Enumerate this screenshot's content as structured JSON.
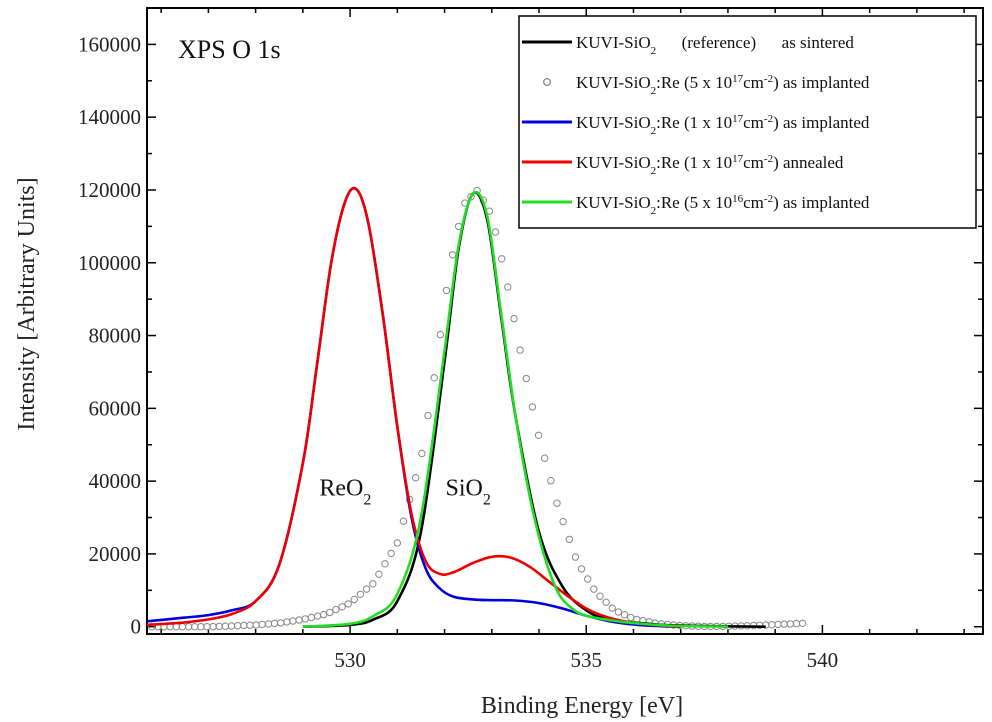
{
  "chart_data": {
    "type": "line",
    "title": "XPS O 1s",
    "xlabel": "Binding Energy [eV]",
    "ylabel": "Intensity [Arbitrary Units]",
    "xlim": [
      525.7,
      543.4
    ],
    "ylim": [
      -2000,
      170000
    ],
    "xticks": [
      530,
      535,
      540
    ],
    "yticks": [
      0,
      20000,
      40000,
      60000,
      80000,
      100000,
      120000,
      140000,
      160000
    ],
    "grid": false,
    "legend_position": "top-right",
    "annotations": [
      {
        "text": "ReO",
        "sub": "2",
        "x": 529.9,
        "y": 36000
      },
      {
        "text": "SiO",
        "sub": "2",
        "x": 532.5,
        "y": 36000
      }
    ],
    "series": [
      {
        "name": "KUVI-SiO2 (reference) as sintered",
        "legend": {
          "pre": "KUVI-SiO",
          "sub": "2",
          "post": "      (reference)      as sintered"
        },
        "color": "#000000",
        "style": "line",
        "x": [
          529.0,
          530.0,
          530.5,
          531.0,
          531.5,
          532.0,
          532.3,
          532.6,
          532.9,
          533.2,
          533.5,
          534.0,
          534.5,
          535.0,
          535.5,
          536.5,
          537.5,
          538.8
        ],
        "y": [
          0,
          500,
          2000,
          7000,
          26000,
          73000,
          104000,
          119000,
          112000,
          85000,
          58000,
          26000,
          11000,
          4500,
          2000,
          600,
          200,
          0
        ]
      },
      {
        "name": "KUVI-SiO2:Re (5 x 10^17 cm^-2) as implanted",
        "legend": {
          "pre": "KUVI-SiO",
          "sub": "2",
          "mid": ":Re (5 x 10",
          "sup": "17",
          "mid2": "cm",
          "sup2": "-2",
          "post": ") as implanted"
        },
        "color": "#888888",
        "style": "circles",
        "x": [
          525.8,
          526.5,
          527.0,
          527.5,
          528.0,
          528.5,
          529.0,
          529.5,
          530.0,
          530.5,
          531.0,
          531.5,
          531.8,
          532.1,
          532.4,
          532.7,
          533.0,
          533.3,
          533.6,
          534.0,
          534.4,
          534.8,
          535.2,
          535.6,
          536.0,
          536.5,
          537.0,
          537.5,
          538.0,
          538.5,
          539.0,
          539.7
        ],
        "y": [
          0,
          0,
          0,
          200,
          500,
          1000,
          2000,
          3500,
          6500,
          12000,
          23000,
          46000,
          70000,
          98000,
          116000,
          120000,
          113000,
          96000,
          76000,
          52000,
          33000,
          18000,
          9500,
          4500,
          2200,
          900,
          300,
          100,
          100,
          300,
          600,
          1000
        ]
      },
      {
        "name": "KUVI-SiO2:Re (1 x 10^17 cm^-2) as implanted",
        "legend": {
          "pre": "KUVI-SiO",
          "sub": "2",
          "mid": ":Re (1 x 10",
          "sup": "17",
          "mid2": "cm",
          "sup2": "-2",
          "post": ") as implanted"
        },
        "color": "#0000dd",
        "style": "line",
        "x": [
          525.7,
          526.5,
          527.0,
          527.5,
          528.0,
          528.5,
          529.0,
          529.3,
          529.6,
          529.9,
          530.15,
          530.4,
          530.7,
          531.0,
          531.3,
          531.6,
          531.9,
          532.2,
          532.6,
          533.0,
          533.5,
          534.0,
          534.5,
          535.0,
          535.5,
          536.0,
          536.5,
          537.0
        ],
        "y": [
          1500,
          2500,
          3200,
          4500,
          7000,
          17000,
          45000,
          72000,
          100000,
          117000,
          120000,
          110000,
          85000,
          55000,
          30000,
          16000,
          10500,
          8200,
          7500,
          7300,
          7200,
          6500,
          5000,
          3000,
          1500,
          600,
          200,
          0
        ]
      },
      {
        "name": "KUVI-SiO2:Re (1 x 10^17 cm^-2) annealed",
        "legend": {
          "pre": "KUVI-SiO",
          "sub": "2",
          "mid": ":Re (1 x 10",
          "sup": "17",
          "mid2": "cm",
          "sup2": "-2",
          "post": ") annealed"
        },
        "color": "#ee0000",
        "style": "line",
        "x": [
          525.7,
          526.5,
          527.0,
          527.5,
          528.0,
          528.5,
          529.0,
          529.3,
          529.6,
          529.9,
          530.15,
          530.4,
          530.7,
          531.0,
          531.3,
          531.6,
          531.9,
          532.2,
          532.6,
          533.0,
          533.4,
          533.8,
          534.2,
          534.6,
          535.0,
          535.4,
          535.8,
          536.3,
          537.0
        ],
        "y": [
          500,
          1200,
          2000,
          3500,
          7000,
          17000,
          45000,
          72000,
          100000,
          117000,
          120000,
          110000,
          85000,
          55000,
          31000,
          18000,
          14500,
          15000,
          17500,
          19200,
          19000,
          16500,
          12500,
          8500,
          5000,
          2800,
          1500,
          600,
          0
        ]
      },
      {
        "name": "KUVI-SiO2:Re (5 x 10^16 cm^-2) as implanted",
        "legend": {
          "pre": "KUVI-SiO",
          "sub": "2",
          "mid": ":Re (5 x 10",
          "sup": "16",
          "mid2": "cm",
          "sup2": "-2",
          "post": ") as implanted"
        },
        "color": "#22dd22",
        "style": "line",
        "x": [
          529.0,
          530.0,
          530.5,
          531.0,
          531.5,
          532.0,
          532.3,
          532.6,
          532.9,
          533.2,
          533.5,
          533.8,
          534.1,
          534.4,
          534.7,
          535.0,
          535.5,
          536.0,
          536.5,
          537.0,
          538.0
        ],
        "y": [
          0,
          800,
          3000,
          9000,
          30000,
          76000,
          105000,
          119000,
          113000,
          86000,
          58000,
          36000,
          20000,
          9500,
          5000,
          3000,
          1800,
          1000,
          500,
          200,
          0
        ]
      }
    ]
  }
}
